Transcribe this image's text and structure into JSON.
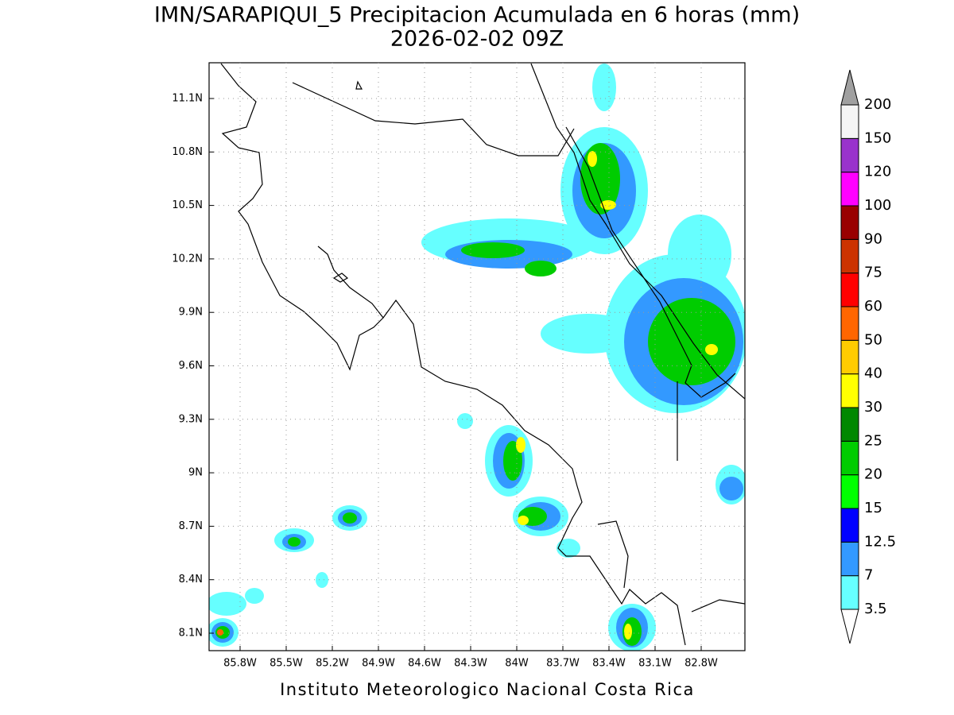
{
  "title": "IMN/SARAPIQUI_5 Precipitacion Acumulada en 6 horas (mm)",
  "subtitle": "2026-02-02 09Z",
  "lat_labels": [
    "11.1N",
    "10.8N",
    "10.5N",
    "10.2N",
    "9.9N",
    "9.6N",
    "9.3N",
    "9N",
    "8.7N",
    "8.4N",
    "8.1N"
  ],
  "lon_labels": [
    "85.8W",
    "85.5W",
    "85.2W",
    "84.9W",
    "84.6W",
    "84.3W",
    "84W",
    "83.7W",
    "83.4W",
    "83.1W",
    "82.8W"
  ],
  "colorbar": {
    "labels": [
      "3.5",
      "7",
      "12.5",
      "15",
      "20",
      "25",
      "30",
      "40",
      "50",
      "60",
      "75",
      "90",
      "100",
      "120",
      "150",
      "200"
    ],
    "colors": [
      "#66ffff",
      "#3399ff",
      "#0000ff",
      "#00ff00",
      "#00cc00",
      "#008800",
      "#ffff00",
      "#ffcc00",
      "#ff6600",
      "#ff0000",
      "#cc3300",
      "#990000",
      "#ff00ff",
      "#9933cc",
      "#f5f5f5"
    ],
    "below_color": "#ffffff",
    "above_color": "#a0a0a0"
  },
  "footer": "Instituto Meteorologico Nacional Costa Rica"
}
